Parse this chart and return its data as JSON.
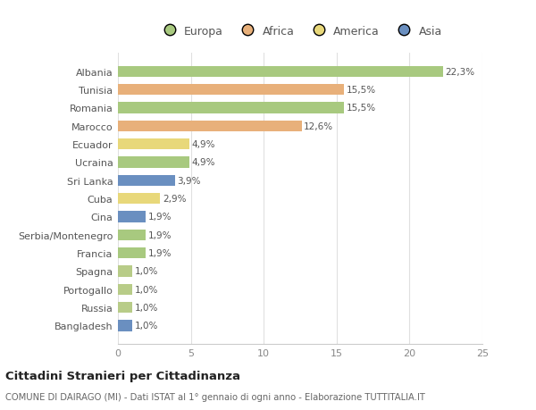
{
  "categories": [
    "Albania",
    "Tunisia",
    "Romania",
    "Marocco",
    "Ecuador",
    "Ucraina",
    "Sri Lanka",
    "Cuba",
    "Cina",
    "Serbia/Montenegro",
    "Francia",
    "Spagna",
    "Portogallo",
    "Russia",
    "Bangladesh"
  ],
  "values": [
    22.3,
    15.5,
    15.5,
    12.6,
    4.9,
    4.9,
    3.9,
    2.9,
    1.9,
    1.9,
    1.9,
    1.0,
    1.0,
    1.0,
    1.0
  ],
  "labels": [
    "22,3%",
    "15,5%",
    "15,5%",
    "12,6%",
    "4,9%",
    "4,9%",
    "3,9%",
    "2,9%",
    "1,9%",
    "1,9%",
    "1,9%",
    "1,0%",
    "1,0%",
    "1,0%",
    "1,0%"
  ],
  "bar_colors": [
    "#a8c97f",
    "#e8b07a",
    "#a8c97f",
    "#e8b07a",
    "#e8d87a",
    "#a8c97f",
    "#6a8fc0",
    "#e8d87a",
    "#6a8fc0",
    "#a8c97f",
    "#a8c97f",
    "#b8cc88",
    "#b8cc88",
    "#b8cc88",
    "#6a8fc0"
  ],
  "legend_labels": [
    "Europa",
    "Africa",
    "America",
    "Asia"
  ],
  "legend_colors": [
    "#a8c97f",
    "#e8b07a",
    "#e8d87a",
    "#6a8fc0"
  ],
  "xlim": [
    0,
    25
  ],
  "xticks": [
    0,
    5,
    10,
    15,
    20,
    25
  ],
  "title": "Cittadini Stranieri per Cittadinanza",
  "subtitle": "COMUNE DI DAIRAGO (MI) - Dati ISTAT al 1° gennaio di ogni anno - Elaborazione TUTTITALIA.IT",
  "background_color": "#ffffff",
  "grid_color": "#e0e0e0",
  "bar_height": 0.6
}
